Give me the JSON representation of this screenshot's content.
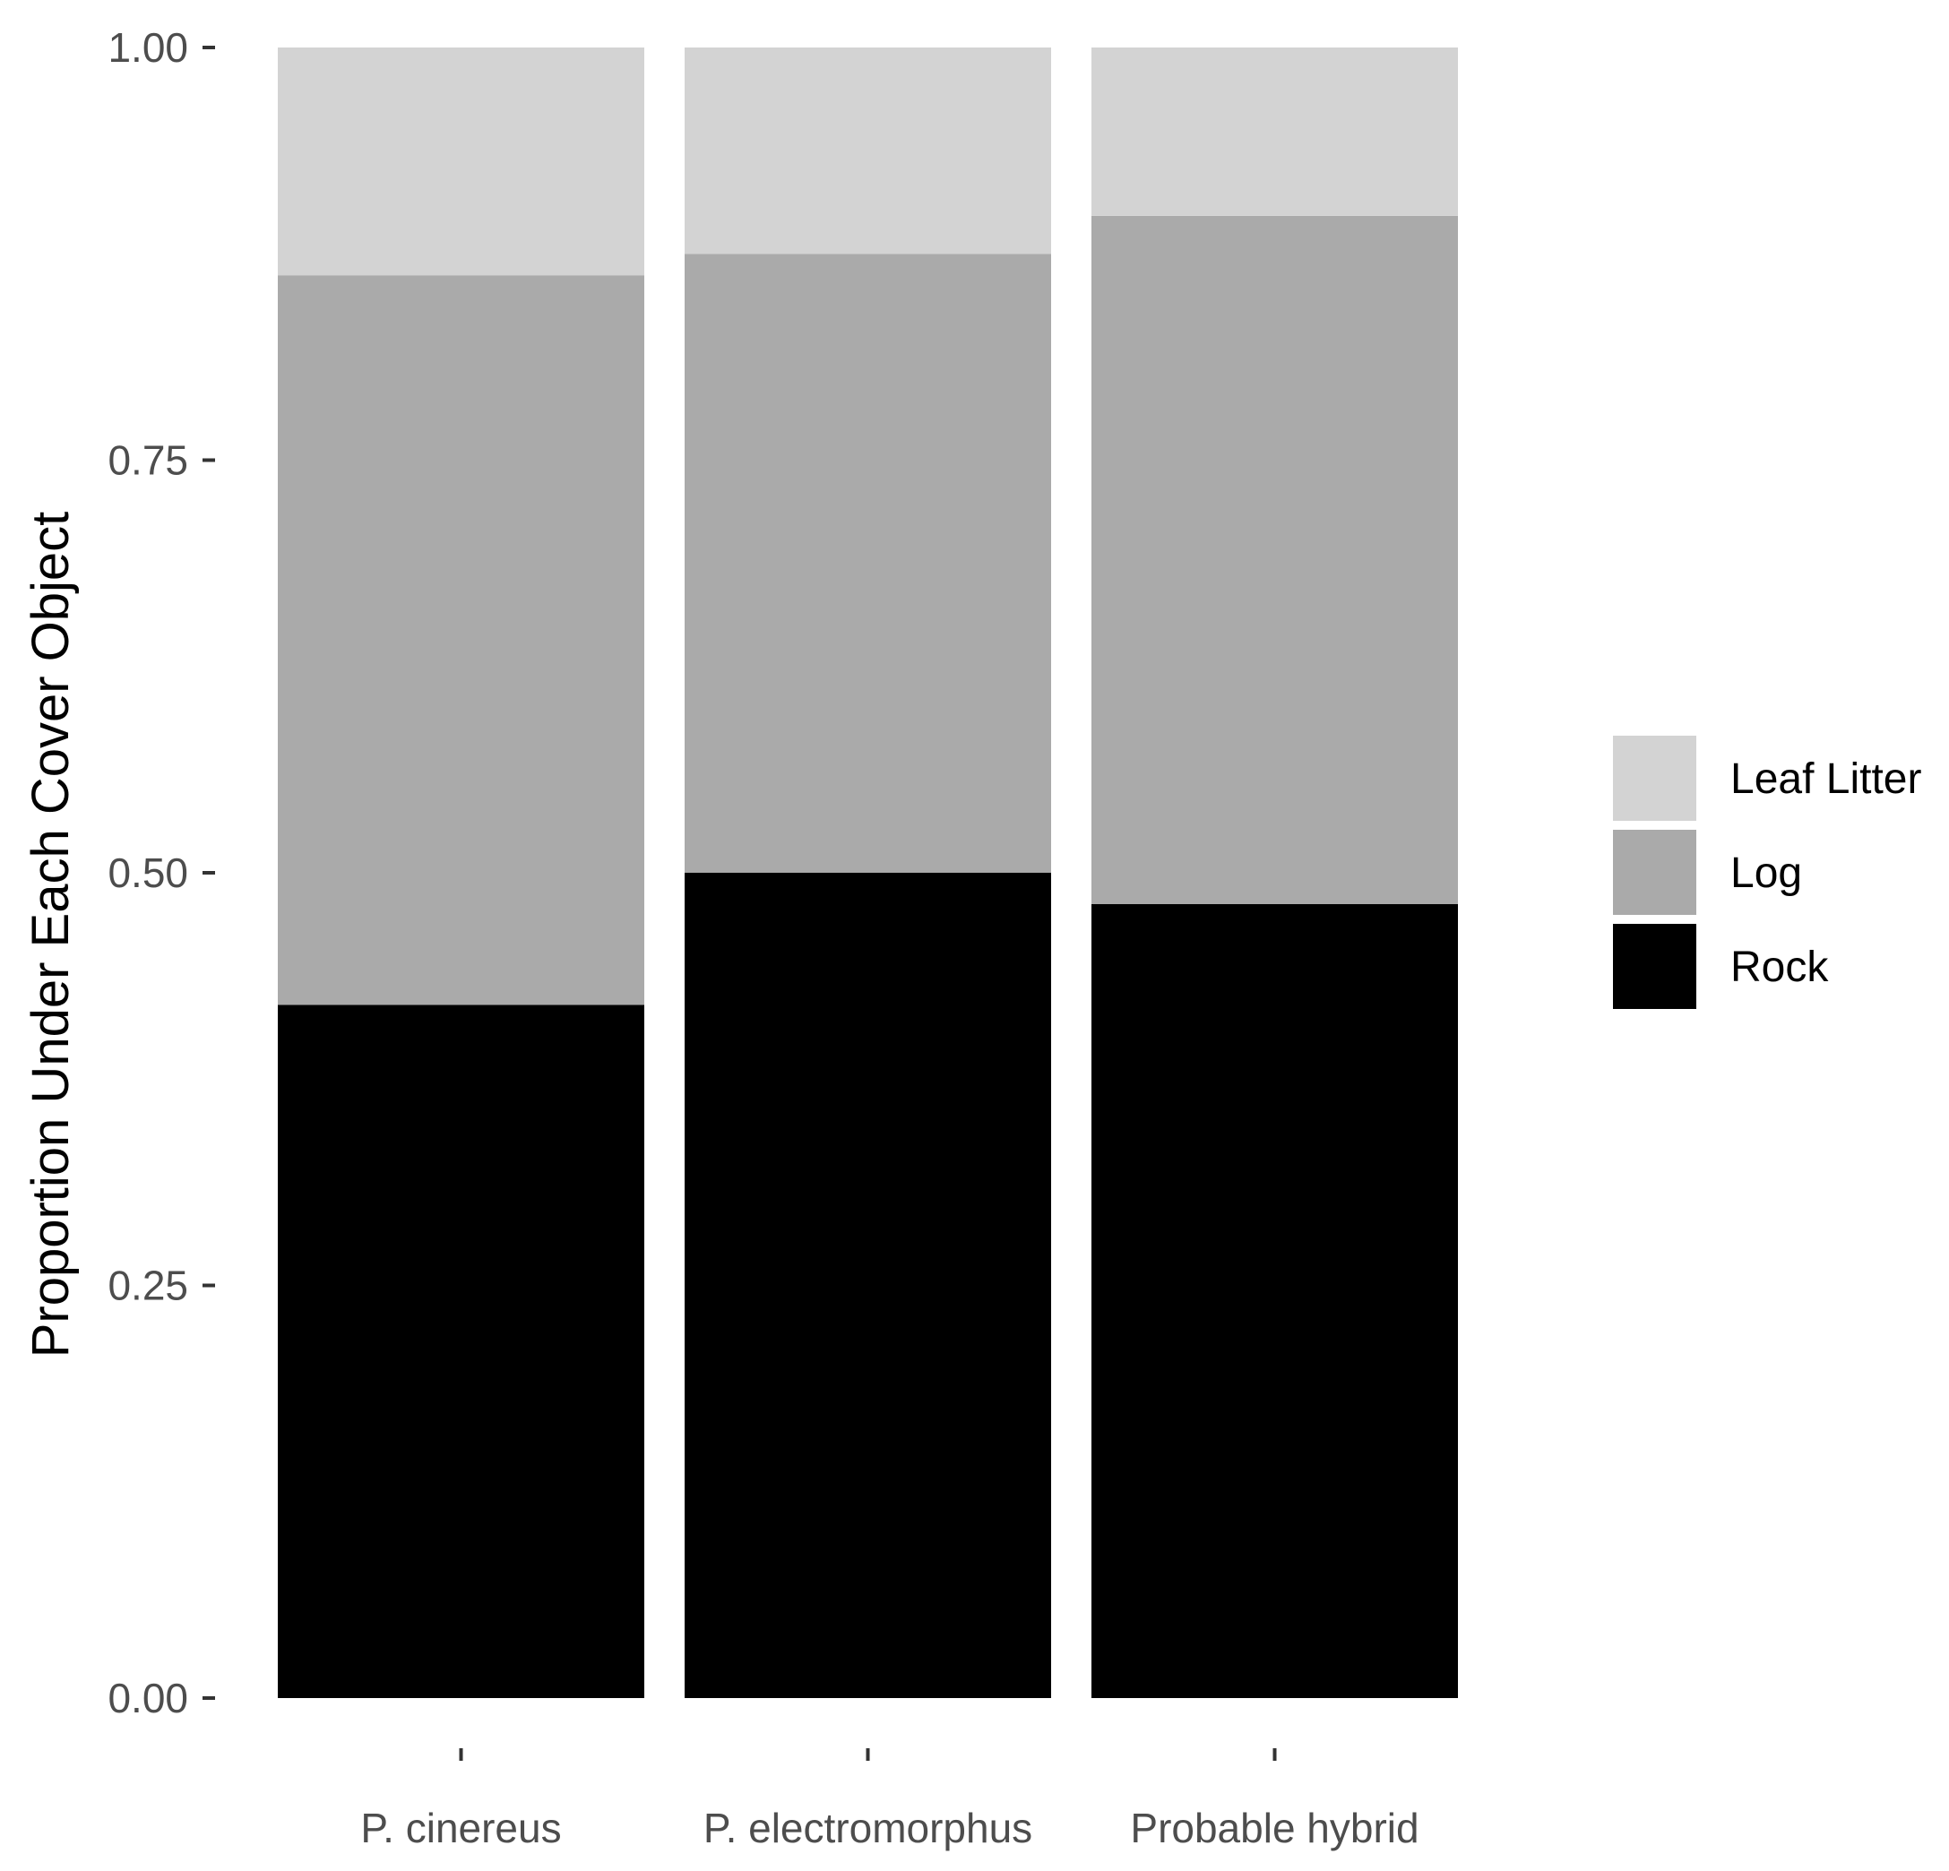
{
  "chart_data": {
    "type": "bar",
    "stacked": true,
    "categories": [
      "P. cinereus",
      "P. electromorphus",
      "Probable hybrid"
    ],
    "series": [
      {
        "name": "Rock",
        "color": "#000000",
        "values": [
          0.42,
          0.5,
          0.481
        ]
      },
      {
        "name": "Log",
        "color": "#aaaaaa",
        "values": [
          0.442,
          0.375,
          0.417
        ]
      },
      {
        "name": "Leaf Litter",
        "color": "#d3d3d3",
        "values": [
          0.138,
          0.125,
          0.102
        ]
      }
    ],
    "legend_order": [
      "Leaf Litter",
      "Log",
      "Rock"
    ],
    "title": "",
    "xlabel": "",
    "ylabel": "Proportion Under Each Cover Object",
    "ylim": [
      0,
      1
    ],
    "yticks": [
      0,
      0.25,
      0.5,
      0.75,
      1
    ],
    "ytick_labels": [
      "0.00",
      "0.25",
      "0.50",
      "0.75",
      "1.00"
    ],
    "grid": false,
    "legend_position": "right"
  }
}
